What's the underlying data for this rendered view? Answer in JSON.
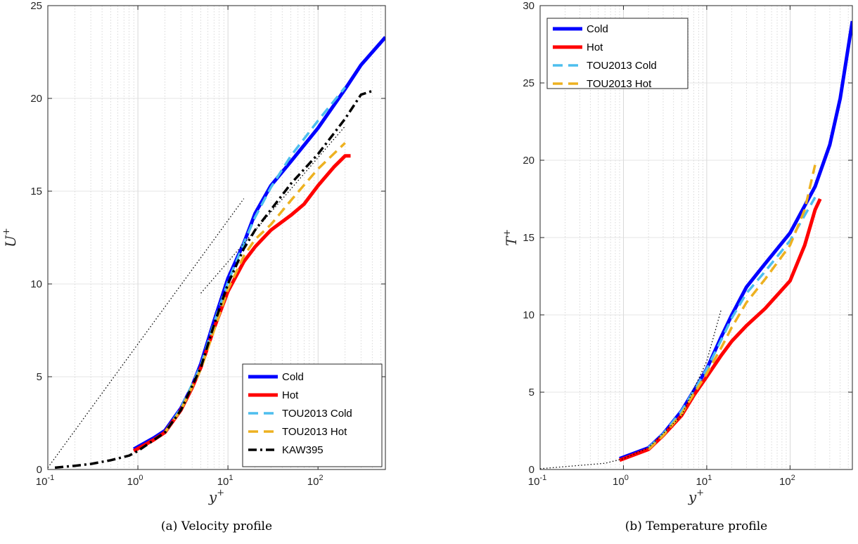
{
  "chart_data": [
    {
      "type": "line",
      "caption": "(a) Velocity profile",
      "xlabel": "y",
      "xlabel_sup": "+",
      "ylabel": "U",
      "ylabel_sup": "+",
      "xscale": "log",
      "xlim": [
        0.1,
        560
      ],
      "ylim": [
        0,
        25
      ],
      "yticks": [
        0,
        5,
        10,
        15,
        20,
        25
      ],
      "xticks": [
        {
          "base": "10",
          "exp": "-1",
          "value": 0.1
        },
        {
          "base": "10",
          "exp": "0",
          "value": 1
        },
        {
          "base": "10",
          "exp": "1",
          "value": 10
        },
        {
          "base": "10",
          "exp": "2",
          "value": 100
        }
      ],
      "grid": true,
      "legend_position": "bottom-right",
      "series": [
        {
          "name": "Cold",
          "color": "#0000ff",
          "style": "solid",
          "x": [
            0.9,
            1.5,
            2,
            3,
            4,
            5,
            7,
            10,
            15,
            20,
            30,
            50,
            100,
            200,
            300,
            560
          ],
          "y": [
            1.1,
            1.7,
            2.1,
            3.3,
            4.5,
            5.7,
            8.0,
            10.3,
            12.2,
            13.8,
            15.3,
            16.6,
            18.4,
            20.5,
            21.8,
            23.3
          ]
        },
        {
          "name": "Hot",
          "color": "#ff0000",
          "style": "solid",
          "x": [
            0.9,
            1.5,
            2,
            3,
            4,
            5,
            7,
            10,
            15,
            20,
            30,
            50,
            70,
            100,
            150,
            200,
            230
          ],
          "y": [
            1.0,
            1.6,
            2.0,
            3.2,
            4.4,
            5.5,
            7.6,
            9.6,
            11.2,
            12.0,
            12.9,
            13.7,
            14.3,
            15.3,
            16.3,
            16.9,
            16.9
          ]
        },
        {
          "name": "TOU2013 Cold",
          "color": "#4dbeee",
          "style": "dash",
          "x": [
            2,
            3,
            5,
            7,
            10,
            15,
            20,
            30,
            50,
            100,
            200
          ],
          "y": [
            2.0,
            3.3,
            5.6,
            7.9,
            10.1,
            12.2,
            13.6,
            15.2,
            16.9,
            18.8,
            20.6
          ]
        },
        {
          "name": "TOU2013 Hot",
          "color": "#edb120",
          "style": "dash",
          "x": [
            2,
            3,
            5,
            7,
            10,
            15,
            20,
            30,
            50,
            100,
            200
          ],
          "y": [
            2.0,
            3.2,
            5.4,
            7.5,
            9.7,
            11.5,
            12.4,
            13.2,
            14.5,
            16.2,
            17.6
          ]
        },
        {
          "name": "KAW395",
          "color": "#000000",
          "style": "dashdot",
          "x": [
            0.12,
            0.2,
            0.3,
            0.5,
            0.8,
            1,
            2,
            3,
            5,
            7,
            10,
            15,
            20,
            30,
            50,
            100,
            200,
            300,
            400
          ],
          "y": [
            0.1,
            0.2,
            0.3,
            0.5,
            0.75,
            1.0,
            2.0,
            3.2,
            5.5,
            7.8,
            10.0,
            11.9,
            12.9,
            14.0,
            15.4,
            17.0,
            18.9,
            20.2,
            20.4
          ]
        },
        {
          "name": "",
          "color": "#000000",
          "style": "dotted",
          "x": [
            0.1,
            15
          ],
          "y": [
            0.1,
            14.6
          ]
        },
        {
          "name": "",
          "color": "#000000",
          "style": "dotted",
          "x": [
            5,
            200
          ],
          "y": [
            9.5,
            18.5
          ]
        }
      ]
    },
    {
      "type": "line",
      "caption": "(b) Temperature profile",
      "xlabel": "y",
      "xlabel_sup": "+",
      "ylabel": "T",
      "ylabel_sup": "+",
      "xscale": "log",
      "xlim": [
        0.1,
        560
      ],
      "ylim": [
        0,
        30
      ],
      "yticks": [
        0,
        5,
        10,
        15,
        20,
        25,
        30
      ],
      "xticks": [
        {
          "base": "10",
          "exp": "-1",
          "value": 0.1
        },
        {
          "base": "10",
          "exp": "0",
          "value": 1
        },
        {
          "base": "10",
          "exp": "1",
          "value": 10
        },
        {
          "base": "10",
          "exp": "2",
          "value": 100
        }
      ],
      "grid": true,
      "legend_position": "top-left",
      "series": [
        {
          "name": "Cold",
          "color": "#0000ff",
          "style": "solid",
          "x": [
            0.9,
            2,
            3,
            5,
            7,
            10,
            15,
            20,
            30,
            50,
            100,
            200,
            300,
            400,
            560
          ],
          "y": [
            0.7,
            1.4,
            2.3,
            3.8,
            5.1,
            6.5,
            8.6,
            10.0,
            11.8,
            13.3,
            15.3,
            18.3,
            21.0,
            24.0,
            29.0
          ]
        },
        {
          "name": "Hot",
          "color": "#ff0000",
          "style": "solid",
          "x": [
            0.9,
            2,
            3,
            5,
            7,
            10,
            15,
            20,
            30,
            50,
            100,
            150,
            200,
            230
          ],
          "y": [
            0.6,
            1.3,
            2.2,
            3.5,
            4.8,
            6.0,
            7.4,
            8.3,
            9.3,
            10.4,
            12.2,
            14.5,
            16.8,
            17.5
          ]
        },
        {
          "name": "TOU2013 Cold",
          "color": "#4dbeee",
          "style": "dash",
          "x": [
            2,
            3,
            5,
            7,
            10,
            15,
            20,
            30,
            50,
            100,
            200
          ],
          "y": [
            1.4,
            2.3,
            3.8,
            5.1,
            6.5,
            8.4,
            9.8,
            11.4,
            12.8,
            14.8,
            17.6
          ]
        },
        {
          "name": "TOU2013 Hot",
          "color": "#edb120",
          "style": "dash",
          "x": [
            2,
            3,
            5,
            7,
            10,
            15,
            20,
            30,
            50,
            100,
            150,
            200
          ],
          "y": [
            1.3,
            2.2,
            3.6,
            4.9,
            6.2,
            7.9,
            9.2,
            10.8,
            12.3,
            14.5,
            16.8,
            19.7
          ]
        },
        {
          "name": "",
          "color": "#000000",
          "style": "dotted",
          "x": [
            0.1,
            0.6,
            1,
            2,
            5,
            10,
            15
          ],
          "y": [
            0.05,
            0.4,
            0.7,
            1.4,
            3.5,
            7.0,
            10.4
          ]
        }
      ]
    }
  ]
}
